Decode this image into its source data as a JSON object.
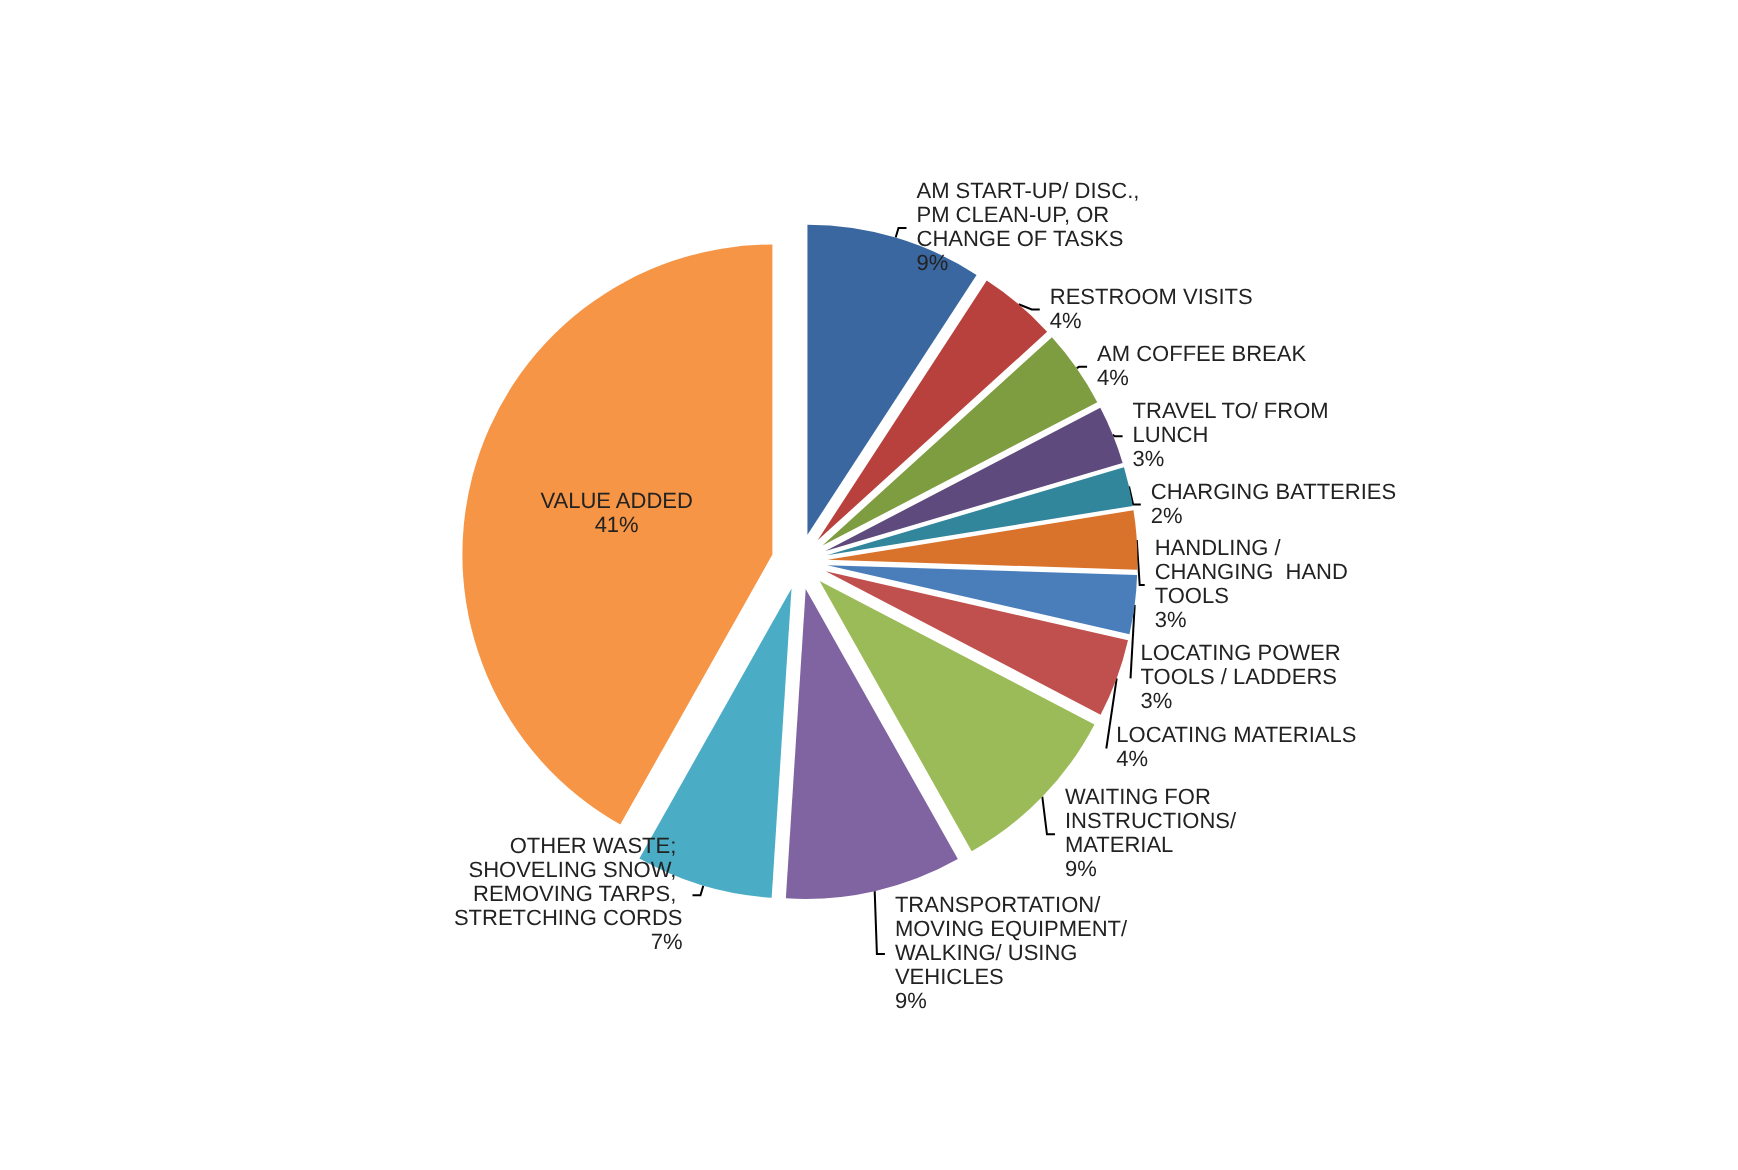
{
  "chart_data": {
    "type": "pie",
    "categories": [
      "AM START-UP/ DISC., PM CLEAN-UP, OR CHANGE OF TASKS",
      "RESTROOM VISITS",
      "AM COFFEE BREAK",
      "TRAVEL TO/ FROM LUNCH",
      "CHARGING BATTERIES",
      "HANDLING / CHANGING  HAND TOOLS",
      "LOCATING POWER TOOLS / LADDERS",
      "LOCATING MATERIALS",
      "WAITING FOR INSTRUCTIONS/ MATERIAL",
      "TRANSPORTATION/ MOVING EQUIPMENT/ WALKING/ USING VEHICLES",
      "OTHER WASTE; SHOVELING SNOW, REMOVING TARPS, STRETCHING CORDS",
      "VALUE ADDED"
    ],
    "values": [
      9,
      4,
      4,
      3,
      2,
      3,
      3,
      4,
      9,
      9,
      7,
      41
    ],
    "colors": [
      "#3a679f",
      "#b8413e",
      "#7e9c40",
      "#5f4a7d",
      "#31869c",
      "#d9722a",
      "#4a7ebb",
      "#c0504d",
      "#9bbb59",
      "#8064a2",
      "#4bacc6",
      "#f59545"
    ],
    "value_labels": [
      "9%",
      "4%",
      "4%",
      "3%",
      "2%",
      "3%",
      "3%",
      "4%",
      "9%",
      "9%",
      "7%",
      "41%"
    ],
    "legend": false
  }
}
